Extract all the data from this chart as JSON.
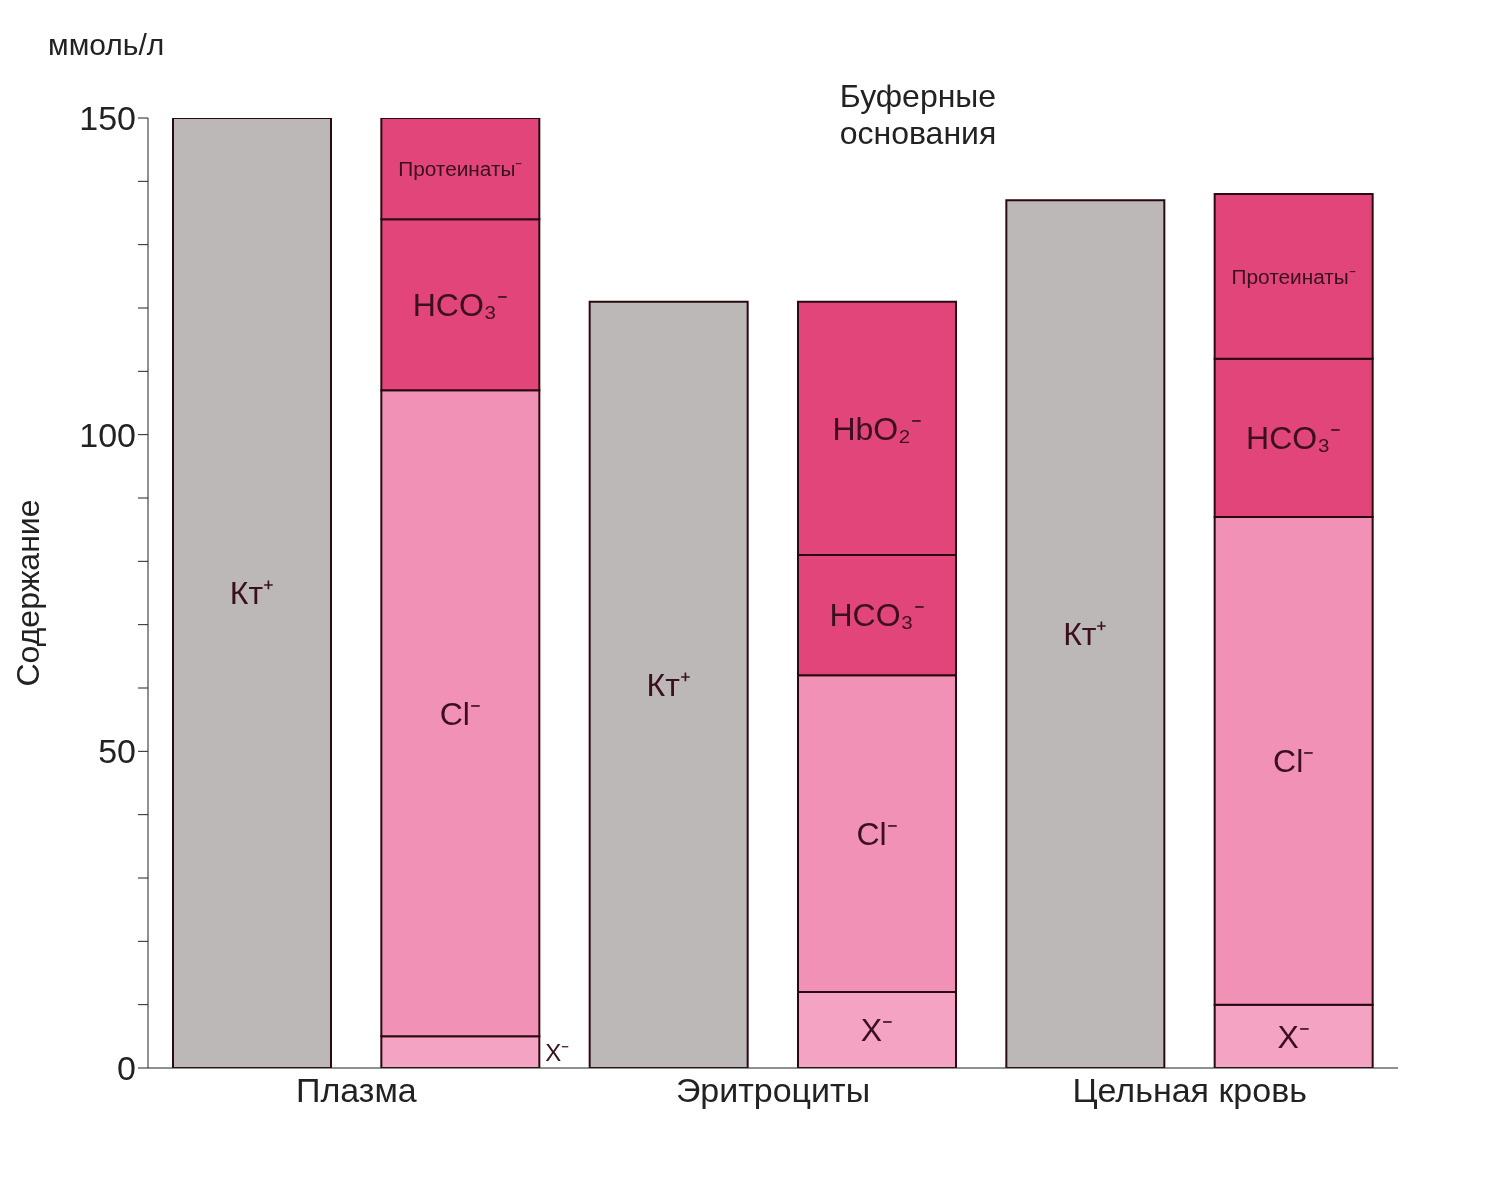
{
  "chart_data": {
    "type": "bar",
    "stacked": true,
    "ylabel": "Содержание",
    "annotations": [
      "ммоль/л",
      "Буферные основания"
    ],
    "categories": [
      "Плазма",
      null,
      "Эритроциты",
      null,
      "Цельная кровь",
      null
    ],
    "ylim": [
      0,
      150
    ],
    "yticks": [
      0,
      {
        "value": 10,
        "label": null
      },
      {
        "value": 20,
        "label": null
      },
      {
        "value": 30,
        "label": null
      },
      {
        "value": 40,
        "label": null
      },
      50,
      {
        "value": 60,
        "label": null
      },
      {
        "value": 70,
        "label": null
      },
      {
        "value": 80,
        "label": null
      },
      {
        "value": 90,
        "label": null
      },
      100,
      {
        "value": 110,
        "label": null
      },
      {
        "value": 120,
        "label": null
      },
      {
        "value": 130,
        "label": null
      },
      {
        "value": 140,
        "label": null
      },
      150
    ],
    "series": [
      {
        "name": "Кт⁺",
        "color": "#bdb8b8",
        "values": [
          150,
          null,
          121,
          null,
          137,
          null
        ]
      },
      {
        "name": "X⁻",
        "color": "#f4a3c2",
        "values": [
          null,
          5,
          null,
          12,
          null,
          10
        ]
      },
      {
        "name": "Cl⁻",
        "color": "#f291b6",
        "values": [
          null,
          102,
          null,
          50,
          null,
          77
        ]
      },
      {
        "name": "HCO₃⁻",
        "color": "#e2457a",
        "values": [
          null,
          27,
          null,
          19,
          null,
          25
        ]
      },
      {
        "name": "Протеинаты⁻",
        "color": "#e2457a",
        "values": [
          null,
          16,
          null,
          null,
          null,
          26
        ]
      },
      {
        "name": "HbO₂⁻",
        "color": "#e2457a",
        "values": [
          null,
          null,
          null,
          40,
          null,
          null
        ]
      }
    ]
  }
}
